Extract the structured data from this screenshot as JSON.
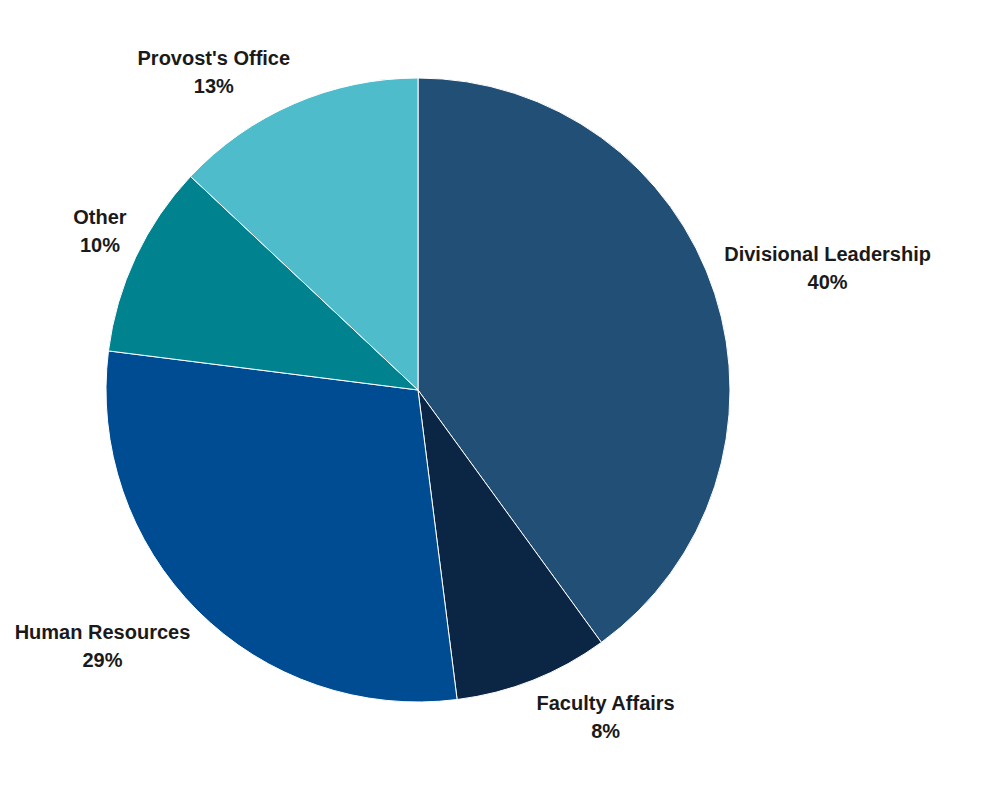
{
  "chart_data": {
    "type": "pie",
    "categories": [
      "Divisional Leadership",
      "Faculty Affairs",
      "Human Resources",
      "Other",
      "Provost's Office"
    ],
    "values": [
      40,
      8,
      29,
      10,
      13
    ],
    "value_labels": [
      "40%",
      "8%",
      "29%",
      "10%",
      "13%"
    ],
    "colors": [
      "#224f75",
      "#0b2645",
      "#004c93",
      "#00838f",
      "#4fbccc"
    ],
    "data_labels": true
  }
}
